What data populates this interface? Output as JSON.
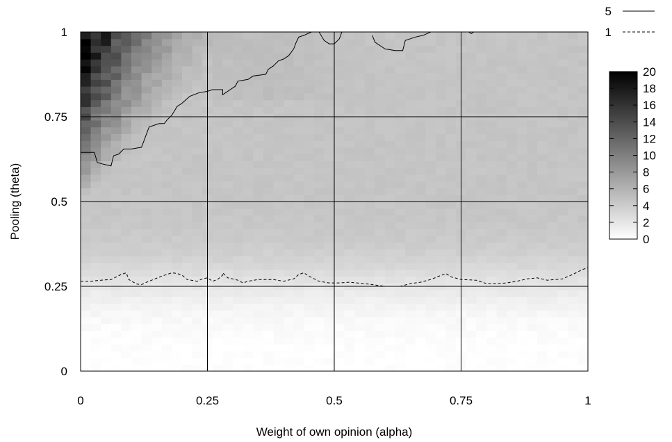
{
  "chart_data": {
    "type": "heatmap",
    "xlabel": "Weight of own opinion (alpha)",
    "ylabel": "Pooling (theta)",
    "xlim": [
      0,
      1
    ],
    "ylim": [
      0,
      1
    ],
    "grid": true,
    "x_ticks": [
      0,
      0.25,
      0.5,
      0.75,
      1
    ],
    "x_tick_labels": [
      "0",
      "0.25",
      "0.5",
      "0.75",
      "1"
    ],
    "y_ticks": [
      0,
      0.25,
      0.5,
      0.75,
      1
    ],
    "y_tick_labels": [
      "0",
      "0.25",
      "0.5",
      "0.75",
      "1"
    ],
    "colorbar": {
      "range": [
        0,
        20
      ],
      "ticks": [
        0,
        2,
        4,
        6,
        8,
        10,
        12,
        14,
        16,
        18,
        20
      ],
      "tick_labels": [
        "0",
        "2",
        "4",
        "6",
        "8",
        "10",
        "12",
        "14",
        "16",
        "18",
        "20"
      ],
      "color_low": "#ffffff",
      "color_high": "#000000",
      "position": "right"
    },
    "legend": {
      "position": "top-right",
      "entries": [
        {
          "label": "5",
          "style": "solid"
        },
        {
          "label": "1",
          "style": "dashed"
        }
      ]
    },
    "contours": [
      {
        "level": 5,
        "style": "solid",
        "segments": [
          [
            [
              0.0,
              0.645
            ],
            [
              0.027,
              0.645
            ],
            [
              0.033,
              0.615
            ],
            [
              0.045,
              0.61
            ],
            [
              0.06,
              0.605
            ],
            [
              0.065,
              0.635
            ],
            [
              0.075,
              0.64
            ],
            [
              0.085,
              0.655
            ],
            [
              0.1,
              0.655
            ],
            [
              0.12,
              0.66
            ],
            [
              0.125,
              0.68
            ],
            [
              0.13,
              0.7
            ],
            [
              0.135,
              0.72
            ],
            [
              0.155,
              0.73
            ],
            [
              0.165,
              0.73
            ],
            [
              0.17,
              0.74
            ],
            [
              0.18,
              0.755
            ],
            [
              0.19,
              0.78
            ],
            [
              0.2,
              0.79
            ],
            [
              0.215,
              0.81
            ],
            [
              0.232,
              0.82
            ],
            [
              0.25,
              0.825
            ],
            [
              0.26,
              0.83
            ],
            [
              0.28,
              0.83
            ],
            [
              0.28,
              0.83
            ],
            [
              0.28,
              0.815
            ],
            [
              0.305,
              0.84
            ],
            [
              0.31,
              0.855
            ],
            [
              0.33,
              0.86
            ],
            [
              0.34,
              0.87
            ],
            [
              0.365,
              0.875
            ],
            [
              0.37,
              0.89
            ],
            [
              0.38,
              0.9
            ],
            [
              0.39,
              0.915
            ],
            [
              0.4,
              0.92
            ],
            [
              0.41,
              0.93
            ],
            [
              0.42,
              0.95
            ],
            [
              0.425,
              0.97
            ],
            [
              0.43,
              0.985
            ],
            [
              0.44,
              0.99
            ],
            [
              0.455,
              1.0
            ]
          ],
          [
            [
              0.47,
              1.0
            ],
            [
              0.48,
              0.975
            ],
            [
              0.49,
              0.965
            ],
            [
              0.5,
              0.965
            ],
            [
              0.51,
              0.98
            ],
            [
              0.515,
              1.0
            ]
          ],
          [
            [
              0.575,
              0.99
            ],
            [
              0.58,
              0.97
            ],
            [
              0.59,
              0.96
            ],
            [
              0.6,
              0.95
            ],
            [
              0.62,
              0.945
            ],
            [
              0.635,
              0.945
            ],
            [
              0.64,
              0.975
            ],
            [
              0.65,
              0.98
            ],
            [
              0.66,
              0.985
            ],
            [
              0.675,
              0.99
            ],
            [
              0.69,
              1.0
            ]
          ],
          [
            [
              0.765,
              1.0
            ],
            [
              0.77,
              0.995
            ],
            [
              0.775,
              1.0
            ]
          ]
        ]
      },
      {
        "level": 1,
        "style": "dashed",
        "segments": [
          [
            [
              0.0,
              0.265
            ],
            [
              0.02,
              0.265
            ],
            [
              0.04,
              0.268
            ],
            [
              0.06,
              0.27
            ],
            [
              0.08,
              0.285
            ],
            [
              0.09,
              0.29
            ],
            [
              0.095,
              0.27
            ],
            [
              0.11,
              0.257
            ],
            [
              0.12,
              0.255
            ],
            [
              0.13,
              0.262
            ],
            [
              0.14,
              0.268
            ],
            [
              0.16,
              0.28
            ],
            [
              0.18,
              0.29
            ],
            [
              0.19,
              0.288
            ],
            [
              0.2,
              0.283
            ],
            [
              0.21,
              0.27
            ],
            [
              0.23,
              0.265
            ],
            [
              0.24,
              0.272
            ],
            [
              0.25,
              0.275
            ],
            [
              0.26,
              0.265
            ],
            [
              0.27,
              0.27
            ],
            [
              0.28,
              0.283
            ],
            [
              0.28,
              0.29
            ],
            [
              0.29,
              0.275
            ],
            [
              0.3,
              0.272
            ],
            [
              0.31,
              0.268
            ],
            [
              0.32,
              0.26
            ],
            [
              0.33,
              0.265
            ],
            [
              0.35,
              0.27
            ],
            [
              0.38,
              0.27
            ],
            [
              0.4,
              0.265
            ],
            [
              0.42,
              0.272
            ],
            [
              0.43,
              0.285
            ],
            [
              0.44,
              0.29
            ],
            [
              0.45,
              0.28
            ],
            [
              0.47,
              0.265
            ],
            [
              0.49,
              0.26
            ],
            [
              0.51,
              0.26
            ],
            [
              0.53,
              0.262
            ],
            [
              0.56,
              0.258
            ],
            [
              0.6,
              0.25
            ],
            [
              0.63,
              0.25
            ],
            [
              0.65,
              0.258
            ],
            [
              0.67,
              0.262
            ],
            [
              0.69,
              0.27
            ],
            [
              0.71,
              0.282
            ],
            [
              0.72,
              0.288
            ],
            [
              0.73,
              0.278
            ],
            [
              0.75,
              0.27
            ],
            [
              0.78,
              0.268
            ],
            [
              0.8,
              0.258
            ],
            [
              0.82,
              0.258
            ],
            [
              0.84,
              0.26
            ],
            [
              0.86,
              0.265
            ],
            [
              0.88,
              0.272
            ],
            [
              0.9,
              0.275
            ],
            [
              0.92,
              0.268
            ],
            [
              0.95,
              0.272
            ],
            [
              0.97,
              0.285
            ],
            [
              0.99,
              0.3
            ],
            [
              1.0,
              0.305
            ]
          ]
        ]
      }
    ]
  }
}
